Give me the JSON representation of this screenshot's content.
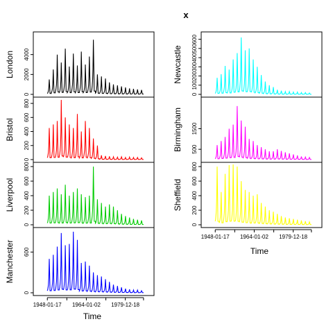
{
  "chart_data": {
    "type": "line",
    "title": "x",
    "xlabel": "Time",
    "x_ticks": [
      "1948-01-17",
      "1964-01-02",
      "1979-12-18"
    ],
    "x_range": [
      "1944-01-01",
      "1989-12-31"
    ],
    "grid": false,
    "panels": [
      {
        "name": "London",
        "color": "#000000",
        "ylim": [
          0,
          6000
        ],
        "yticks": [
          "0",
          "2000",
          "4000"
        ],
        "series": [
          {
            "name": "London",
            "values": [
              1500,
              2500,
              4000,
              3200,
              4600,
              2800,
              4100,
              2900,
              4300,
              3000,
              3800,
              5500,
              2000,
              1800,
              1600,
              1200,
              1000,
              900,
              800,
              700,
              600,
              550,
              500,
              450
            ]
          }
        ]
      },
      {
        "name": "Bristol",
        "color": "#ff0000",
        "ylim": [
          0,
          850
        ],
        "yticks": [
          "0",
          "200",
          "400",
          "600",
          "800"
        ],
        "series": [
          {
            "name": "Bristol",
            "values": [
              450,
              500,
              550,
              850,
              600,
              500,
              450,
              650,
              400,
              550,
              450,
              300,
              200,
              60,
              50,
              45,
              40,
              35,
              40,
              30,
              35,
              30,
              30,
              25
            ]
          }
        ]
      },
      {
        "name": "Liverpool",
        "color": "#00cc00",
        "ylim": [
          0,
          820
        ],
        "yticks": [
          "0",
          "200",
          "400",
          "600",
          "800"
        ],
        "series": [
          {
            "name": "Liverpool",
            "values": [
              400,
              450,
              500,
              420,
              550,
              400,
              450,
              500,
              420,
              380,
              400,
              800,
              350,
              300,
              250,
              280,
              250,
              200,
              150,
              120,
              100,
              80,
              70,
              60
            ]
          }
        ]
      },
      {
        "name": "Manchester",
        "color": "#0000ff",
        "ylim": [
          0,
          920
        ],
        "yticks": [
          "0",
          "600"
        ],
        "series": [
          {
            "name": "Manchester",
            "values": [
              500,
              560,
              680,
              880,
              700,
              720,
              900,
              780,
              440,
              460,
              400,
              300,
              260,
              240,
              200,
              160,
              120,
              100,
              80,
              60,
              50,
              40,
              40,
              30
            ]
          }
        ]
      },
      {
        "name": "Newcastle",
        "color": "#00ffff",
        "ylim": [
          0,
          650
        ],
        "yticks": [
          "0",
          "100",
          "200",
          "300",
          "400",
          "500",
          "600"
        ],
        "series": [
          {
            "name": "Newcastle",
            "values": [
              180,
              220,
              310,
              270,
              380,
              450,
              620,
              480,
              500,
              380,
              300,
              210,
              140,
              100,
              80,
              50,
              40,
              30,
              30,
              25,
              25,
              20,
              20,
              15
            ]
          }
        ]
      },
      {
        "name": "Birmingham",
        "color": "#ff00ff",
        "ylim": [
          0,
          2900
        ],
        "yticks": [
          "500",
          "1500"
        ],
        "series": [
          {
            "name": "Birmingham",
            "values": [
              700,
              900,
              1100,
              1500,
              1700,
              2600,
              1900,
              1600,
              1000,
              900,
              700,
              600,
              500,
              400,
              400,
              500,
              420,
              350,
              300,
              250,
              200,
              150,
              120,
              100
            ]
          }
        ]
      },
      {
        "name": "Sheffield",
        "color": "#ffff00",
        "ylim": [
          0,
          820
        ],
        "yticks": [
          "0",
          "200",
          "400",
          "600",
          "800"
        ],
        "series": [
          {
            "name": "Sheffield",
            "values": [
              800,
              450,
              700,
              820,
              830,
              800,
              600,
              480,
              450,
              400,
              420,
              300,
              250,
              200,
              180,
              150,
              120,
              100,
              90,
              80,
              70,
              60,
              50,
              40
            ]
          }
        ]
      }
    ]
  }
}
